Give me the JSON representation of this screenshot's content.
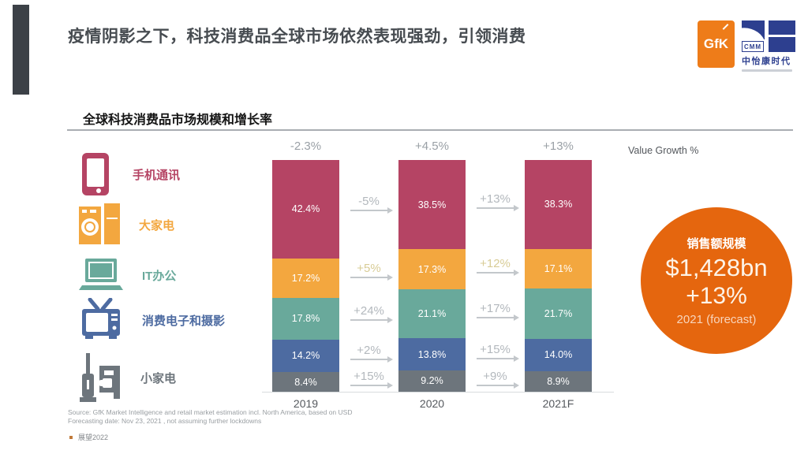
{
  "slide": {
    "title": "疫情阴影之下，科技消费品全球市场依然表现强劲，引领消费",
    "section_title": "全球科技消费品市场规模和增长率",
    "source_line1": "Source: GfK Market Intelligence and retail market estimation incl. North America, based on USD",
    "source_line2": "Forecasting date: Nov 23, 2021 , not assuming further lockdowns",
    "footer_note": "展望2022"
  },
  "logos": {
    "gfk_text": "GfK",
    "cmm_abbr": "CMM",
    "cmm_name": "中怡康时代"
  },
  "badge": {
    "label": "销售额规模",
    "value": "$1,428bn",
    "growth": "+13%",
    "caption": "2021 (forecast)",
    "color": "#e5660e"
  },
  "chart_data": {
    "type": "bar",
    "stacked": true,
    "categories": [
      "2019",
      "2020",
      "2021F"
    ],
    "series": [
      {
        "name": "手机通讯",
        "color": "#b54464",
        "values": [
          42.4,
          38.5,
          38.3
        ]
      },
      {
        "name": "大家电",
        "color": "#f3a73f",
        "values": [
          17.2,
          17.3,
          17.1
        ]
      },
      {
        "name": "IT办公",
        "color": "#69a99b",
        "values": [
          17.8,
          21.1,
          21.7
        ]
      },
      {
        "name": "消费电子和摄影",
        "color": "#4d6ba1",
        "values": [
          14.2,
          13.8,
          14.0
        ]
      },
      {
        "name": "小家电",
        "color": "#6d757c",
        "values": [
          8.4,
          9.2,
          8.9
        ]
      }
    ],
    "value_unit": "%",
    "total_growth": [
      "-2.3%",
      "+4.5%",
      "+13%"
    ],
    "segment_growth": [
      [
        "-5%",
        "+5%",
        "+24%",
        "+2%",
        "+15%"
      ],
      [
        "+13%",
        "+12%",
        "+17%",
        "+15%",
        "+9%"
      ]
    ],
    "highlight_rows": [
      1
    ],
    "ylabel": "Value Growth %",
    "title": "全球科技消费品市场规模和增长率",
    "legend_position": "left",
    "grid": false
  }
}
